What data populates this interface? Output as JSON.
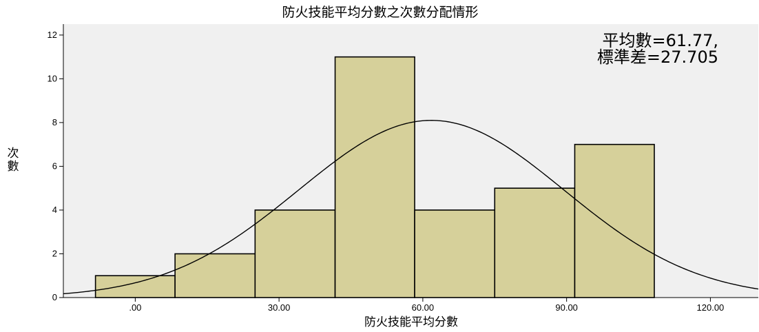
{
  "chart_data": {
    "type": "bar",
    "title": "防火技能平均分數之次數分配情形",
    "xlabel": "防火技能平均分數",
    "ylabel": "次數",
    "xlim": [
      -15,
      130
    ],
    "ylim": [
      0,
      12.5
    ],
    "x_ticks": [
      0,
      30,
      60,
      90,
      120
    ],
    "x_tick_labels": [
      ".00",
      "30.00",
      "60.00",
      "90.00",
      "120.00"
    ],
    "y_ticks": [
      0,
      2,
      4,
      6,
      8,
      10,
      12
    ],
    "y_tick_labels": [
      "0",
      "2",
      "4",
      "6",
      "8",
      "10",
      "12"
    ],
    "bins": [
      {
        "start": -8.3,
        "end": 8.3,
        "count": 1
      },
      {
        "start": 8.3,
        "end": 25.0,
        "count": 2
      },
      {
        "start": 25.0,
        "end": 41.7,
        "count": 4
      },
      {
        "start": 41.7,
        "end": 58.3,
        "count": 11
      },
      {
        "start": 58.3,
        "end": 75.0,
        "count": 4
      },
      {
        "start": 75.0,
        "end": 91.7,
        "count": 5
      },
      {
        "start": 91.7,
        "end": 108.3,
        "count": 7
      }
    ],
    "normal_curve": {
      "mean": 61.77,
      "sd": 27.705,
      "peak": 8.1
    },
    "annotation": {
      "mean_text": "平均數=61.77,",
      "sd_text": "標準差=27.705"
    },
    "colors": {
      "bar_fill": "#d6d09a",
      "bar_stroke": "#000000",
      "plot_bg": "#f0f0f0",
      "curve": "#000000"
    },
    "grid": false
  }
}
